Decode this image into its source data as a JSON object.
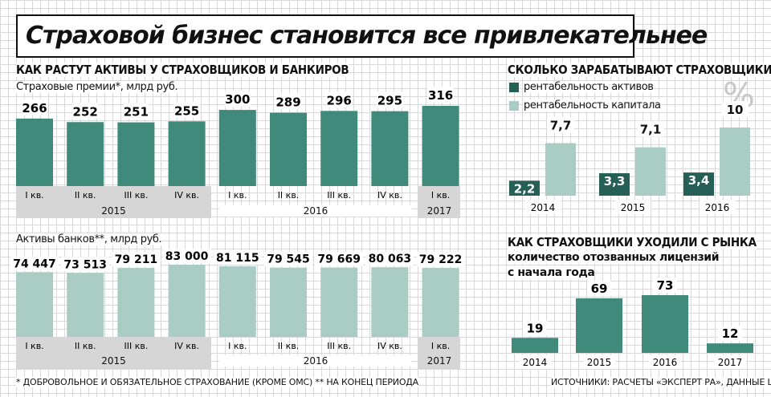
{
  "title": "Страховой бизнес становится все привлекательнее",
  "colors": {
    "dark_teal": "#3f8a7a",
    "darker_teal": "#255f55",
    "light_teal": "#a9ccc5",
    "band_gray": "#d6d6d6"
  },
  "left_section": {
    "heading": "КАК РАСТУТ АКТИВЫ У СТРАХОВЩИКОВ И БАНКИРОВ",
    "quarters": [
      "I кв.",
      "II кв.",
      "III кв.",
      "IV кв.",
      "I кв.",
      "II кв.",
      "III кв.",
      "IV кв.",
      "I кв."
    ],
    "years": [
      "2015",
      "2016",
      "2017"
    ]
  },
  "right_section": {
    "heading": "СКОЛЬКО ЗАРАБАТЫВАЮТ СТРАХОВЩИКИ",
    "percent_sign": "%",
    "heading2": "КАК СТРАХОВЩИКИ УХОДИЛИ С РЫНКА",
    "subheading2_line1": "количество отозванных лицензий",
    "subheading2_line2": "с начала года"
  },
  "footnote": "* ДОБРОВОЛЬНОЕ И ОБЯЗАТЕЛЬНОЕ СТРАХОВАНИЕ (КРОМЕ ОМС)   ** НА КОНЕЦ ПЕРИОДА",
  "source": "ИСТОЧНИКИ: РАСЧЕТЫ «ЭКСПЕРТ РА», ДАННЫЕ ЦБ РФ",
  "chart_data": [
    {
      "type": "bar",
      "title": "Страховые премии*, млрд руб.",
      "categories": [
        "I кв. 2015",
        "II кв. 2015",
        "III кв. 2015",
        "IV кв. 2015",
        "I кв. 2016",
        "II кв. 2016",
        "III кв. 2016",
        "IV кв. 2016",
        "I кв. 2017"
      ],
      "values": [
        266,
        252,
        251,
        255,
        300,
        289,
        296,
        295,
        316
      ],
      "labels": [
        "266",
        "252",
        "251",
        "255",
        "300",
        "289",
        "296",
        "295",
        "316"
      ]
    },
    {
      "type": "bar",
      "title": "Активы банков**, млрд руб.",
      "categories": [
        "I кв. 2015",
        "II кв. 2015",
        "III кв. 2015",
        "IV кв. 2015",
        "I кв. 2016",
        "II кв. 2016",
        "III кв. 2016",
        "IV кв. 2016",
        "I кв. 2017"
      ],
      "values": [
        74447,
        73513,
        79211,
        83000,
        81115,
        79545,
        79669,
        80063,
        79222
      ],
      "labels": [
        "74 447",
        "73 513",
        "79 211",
        "83 000",
        "81 115",
        "79 545",
        "79 669",
        "80 063",
        "79 222"
      ]
    },
    {
      "type": "bar",
      "categories": [
        "2014",
        "2015",
        "2016"
      ],
      "series": [
        {
          "name": "рентабельность активов",
          "values": [
            2.2,
            3.3,
            3.4
          ],
          "labels": [
            "2,2",
            "3,3",
            "3,4"
          ]
        },
        {
          "name": "рентабельность капитала",
          "values": [
            7.7,
            7.1,
            10
          ],
          "labels": [
            "7,7",
            "7,1",
            "10"
          ]
        }
      ],
      "ylabel": "%"
    },
    {
      "type": "bar",
      "categories": [
        "2014",
        "2015",
        "2016",
        "2017"
      ],
      "values": [
        19,
        69,
        73,
        12
      ],
      "labels": [
        "19",
        "69",
        "73",
        "12"
      ]
    }
  ]
}
